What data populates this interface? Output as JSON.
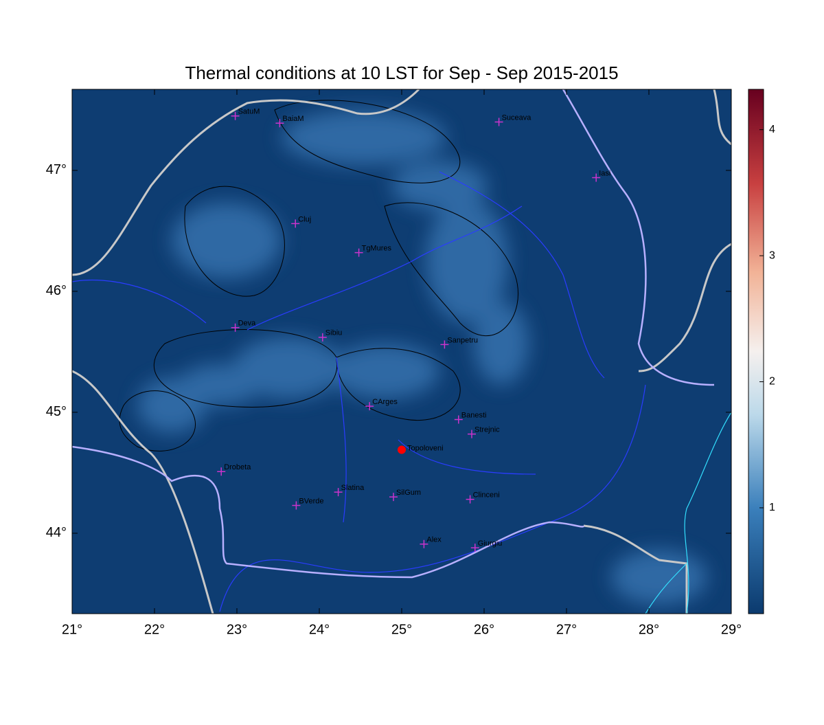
{
  "map": {
    "title": "Thermal conditions at 10 LST for Sep - Sep  2015-2015",
    "xlim": [
      21,
      29
    ],
    "ylim": [
      43.335,
      47.67
    ],
    "xticks": [
      {
        "value": 21,
        "label": "21°"
      },
      {
        "value": 22,
        "label": "22°"
      },
      {
        "value": 23,
        "label": "23°"
      },
      {
        "value": 24,
        "label": "24°"
      },
      {
        "value": 25,
        "label": "25°"
      },
      {
        "value": 26,
        "label": "26°"
      },
      {
        "value": 27,
        "label": "27°"
      },
      {
        "value": 28,
        "label": "28°"
      },
      {
        "value": 29,
        "label": "29°"
      }
    ],
    "yticks": [
      {
        "value": 44,
        "label": "44°"
      },
      {
        "value": 45,
        "label": "45°"
      },
      {
        "value": 46,
        "label": "46°"
      },
      {
        "value": 47,
        "label": "47°"
      }
    ],
    "colorbar": {
      "lim": [
        0.16,
        4.32
      ],
      "ticks": [
        1,
        2,
        3,
        4
      ]
    },
    "stations": [
      {
        "name": "SatuM",
        "lon": 22.98,
        "lat": 47.45
      },
      {
        "name": "BaiaM",
        "lon": 23.52,
        "lat": 47.39
      },
      {
        "name": "Suceava",
        "lon": 26.18,
        "lat": 47.4
      },
      {
        "name": "Iasi",
        "lon": 27.36,
        "lat": 46.94
      },
      {
        "name": "Cluj",
        "lon": 23.71,
        "lat": 46.56
      },
      {
        "name": "TgMures",
        "lon": 24.48,
        "lat": 46.32
      },
      {
        "name": "Deva",
        "lon": 22.98,
        "lat": 45.7
      },
      {
        "name": "Sibiu",
        "lon": 24.04,
        "lat": 45.62
      },
      {
        "name": "Sanpetru",
        "lon": 25.52,
        "lat": 45.56
      },
      {
        "name": "CArges",
        "lon": 24.61,
        "lat": 45.05
      },
      {
        "name": "Banesti",
        "lon": 25.69,
        "lat": 44.94
      },
      {
        "name": "Strejnic",
        "lon": 25.85,
        "lat": 44.82
      },
      {
        "name": "Drobeta",
        "lon": 22.81,
        "lat": 44.51
      },
      {
        "name": "Slatina",
        "lon": 24.23,
        "lat": 44.34
      },
      {
        "name": "SilGum",
        "lon": 24.9,
        "lat": 44.3
      },
      {
        "name": "BVerde",
        "lon": 23.72,
        "lat": 44.23
      },
      {
        "name": "Clinceni",
        "lon": 25.83,
        "lat": 44.28
      },
      {
        "name": "Alex",
        "lon": 25.27,
        "lat": 43.91
      },
      {
        "name": "Giurgiu",
        "lon": 25.89,
        "lat": 43.88
      }
    ],
    "highlight": {
      "name": "Topoloveni",
      "lon": 25.0,
      "lat": 44.69,
      "color": "#ff0000"
    },
    "marker_color": "#cc33cc"
  }
}
